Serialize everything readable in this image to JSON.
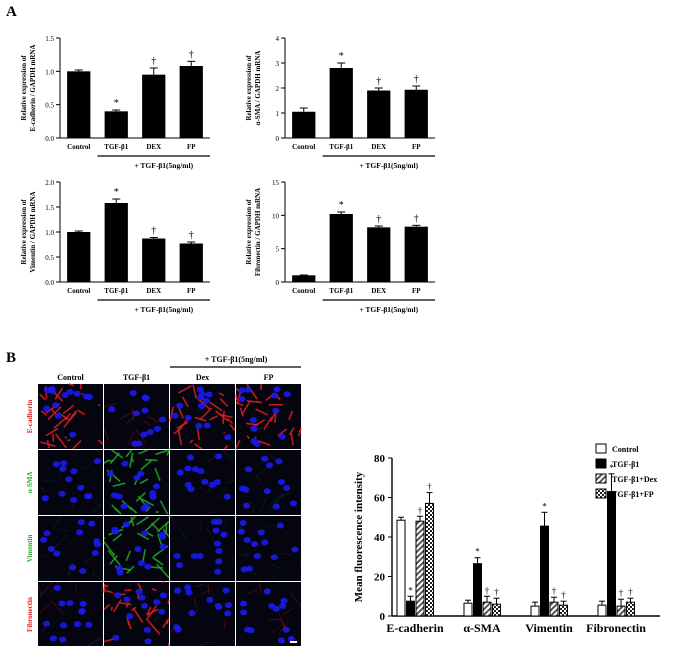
{
  "panel_a_label": "A",
  "panel_b_label": "B",
  "treatment_label": "+ TGF-β1(5ng/ml)",
  "significance": {
    "vs_control": "*",
    "vs_tgf": "†"
  },
  "colors": {
    "bar": "#000000",
    "nuclei": "#1a1aee",
    "ecadherin": "#e02020",
    "asma": "#22aa22",
    "vimentin": "#22aa22",
    "fibronectin": "#e02020"
  },
  "chart_data": [
    {
      "type": "bar",
      "panel": "A",
      "ylabel": [
        "Relative expression of",
        "E-cadherin / GAPDH mRNA"
      ],
      "categories": [
        "Control",
        "TGF-β1",
        "DEX",
        "FP"
      ],
      "values": [
        1.0,
        0.4,
        0.95,
        1.08
      ],
      "errors": [
        0.02,
        0.02,
        0.1,
        0.07
      ],
      "marks": [
        "",
        "*",
        "†",
        "†"
      ],
      "ylim": [
        0,
        1.5
      ],
      "yticks": [
        "0.0",
        "0.5",
        "1.0",
        "1.5"
      ],
      "ytick_values": [
        0,
        0.5,
        1.0,
        1.5
      ]
    },
    {
      "type": "bar",
      "panel": "A",
      "ylabel": [
        "Relative expression of",
        "α-SMA / GAPDH mRNA"
      ],
      "categories": [
        "Control",
        "TGF-β1",
        "DEX",
        "FP"
      ],
      "values": [
        1.05,
        2.8,
        1.9,
        1.93
      ],
      "errors": [
        0.15,
        0.2,
        0.1,
        0.15
      ],
      "marks": [
        "",
        "*",
        "†",
        "†"
      ],
      "ylim": [
        0,
        4
      ],
      "yticks": [
        "0",
        "1",
        "2",
        "3",
        "4"
      ],
      "ytick_values": [
        0,
        1,
        2,
        3,
        4
      ]
    },
    {
      "type": "bar",
      "panel": "A",
      "ylabel": [
        "Relative expression of",
        "Vimentin / GAPDH mRNA"
      ],
      "categories": [
        "Control",
        "TGF-β1",
        "DEX",
        "FP"
      ],
      "values": [
        1.0,
        1.58,
        0.87,
        0.77
      ],
      "errors": [
        0.02,
        0.08,
        0.02,
        0.03
      ],
      "marks": [
        "",
        "*",
        "†",
        "†"
      ],
      "ylim": [
        0,
        2.0
      ],
      "yticks": [
        "0.0",
        "0.5",
        "1.0",
        "1.5",
        "2.0"
      ],
      "ytick_values": [
        0,
        0.5,
        1.0,
        1.5,
        2.0
      ]
    },
    {
      "type": "bar",
      "panel": "A",
      "ylabel": [
        "Relative expression of",
        "Fibronectin / GAPDH mRNA"
      ],
      "categories": [
        "Control",
        "TGF-β1",
        "DEX",
        "FP"
      ],
      "values": [
        1.0,
        10.2,
        8.2,
        8.3
      ],
      "errors": [
        0.05,
        0.3,
        0.2,
        0.2
      ],
      "marks": [
        "",
        "*",
        "†",
        "†"
      ],
      "ylim": [
        0,
        15
      ],
      "yticks": [
        "0",
        "5",
        "10",
        "15"
      ],
      "ytick_values": [
        0,
        5,
        10,
        15
      ]
    },
    {
      "type": "bar",
      "panel": "B",
      "ylabel": "Mean fluorescence intensity",
      "categories": [
        "E-cadherin",
        "α-SMA",
        "Vimentin",
        "Fibronectin"
      ],
      "ylim": [
        0,
        80
      ],
      "yticks": [
        "0",
        "20",
        "40",
        "60",
        "80"
      ],
      "ytick_values": [
        0,
        20,
        40,
        60,
        80
      ],
      "legend_position": "top-right",
      "series": [
        {
          "name": "Control",
          "values": [
            48.5,
            6.5,
            5.0,
            5.5
          ],
          "errors": [
            1.5,
            1.5,
            2.0,
            2.0
          ],
          "marks": [
            "",
            "",
            "",
            ""
          ],
          "fill": "white"
        },
        {
          "name": "TGF-β1",
          "values": [
            7.5,
            26.5,
            45.5,
            63.0
          ],
          "errors": [
            2.5,
            3.0,
            7.0,
            9.0
          ],
          "marks": [
            "*",
            "*",
            "*",
            "*"
          ],
          "fill": "black"
        },
        {
          "name": "TGF-β1+Dex",
          "values": [
            48.0,
            7.0,
            7.0,
            5.0
          ],
          "errors": [
            2.5,
            3.0,
            2.5,
            3.5
          ],
          "marks": [
            "†",
            "†",
            "†",
            "†"
          ],
          "fill": "hatch"
        },
        {
          "name": "TGF-β1+FP",
          "values": [
            57.0,
            6.0,
            5.5,
            7.0
          ],
          "errors": [
            5.5,
            3.0,
            2.0,
            2.0
          ],
          "marks": [
            "†",
            "†",
            "†",
            "†"
          ],
          "fill": "checker"
        }
      ]
    }
  ],
  "microscopy": {
    "column_labels": [
      "Control",
      "TGF-β1",
      "Dex",
      "FP"
    ],
    "row_labels": [
      "E-cadherin",
      "α-SMA",
      "Vimentin",
      "Fibronectin"
    ],
    "row_colors": [
      "#e02020",
      "#22aa22",
      "#22aa22",
      "#e02020"
    ]
  }
}
